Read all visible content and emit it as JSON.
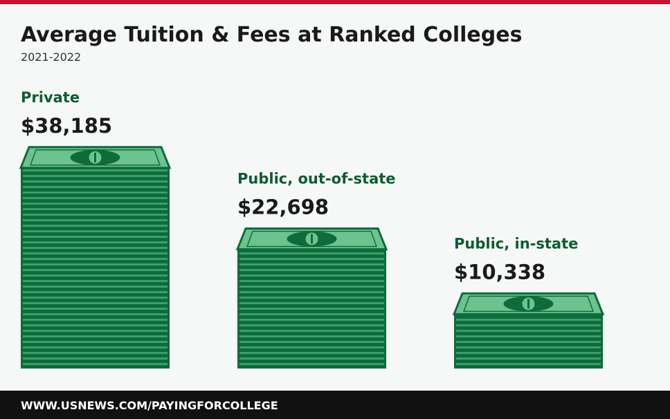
{
  "chart_data": {
    "type": "bar",
    "title": "Average Tuition & Fees at Ranked Colleges",
    "subtitle": "2021-2022",
    "categories": [
      "Private",
      "Public, out-of-state",
      "Public, in-state"
    ],
    "values": [
      38185,
      22698,
      10338
    ],
    "value_labels": [
      "$38,185",
      "$22,698",
      "$10,338"
    ],
    "color": "#0e6b3b",
    "footer": "WWW.USNEWS.COM/PAYINGFORCOLLEGE"
  }
}
